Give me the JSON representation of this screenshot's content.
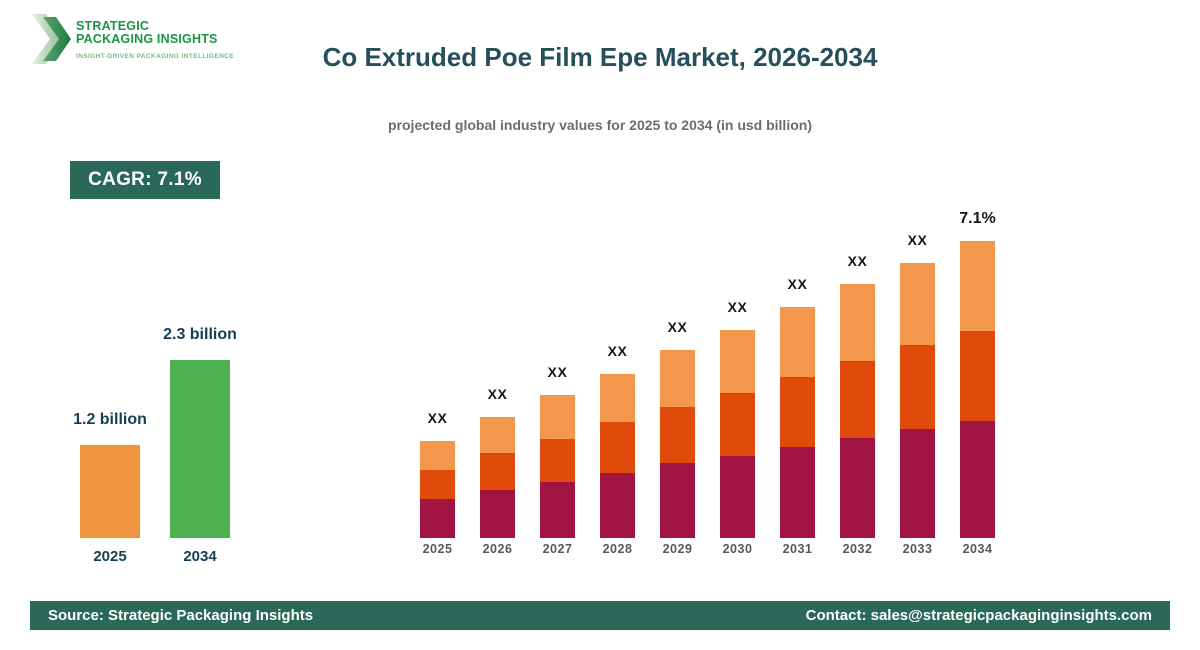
{
  "brand": {
    "line1": "STRATEGIC",
    "line2": "PACKAGING INSIGHTS",
    "tagline": "INSIGHT-DRIVEN PACKAGING INTELLIGENCE"
  },
  "header": {
    "title": "Co Extruded Poe Film Epe Market, 2026-2034",
    "subtitle": "projected global industry values for 2025 to 2034 (in usd billion)"
  },
  "cagr": {
    "label": "CAGR: 7.1%"
  },
  "footer": {
    "source": "Source: Strategic Packaging Insights",
    "contact": "Contact: sales@strategicpackaginginsights.com"
  },
  "colors": {
    "accent_green_dark": "#2a6957",
    "title_teal": "#264f5c",
    "label_navy": "#163e53",
    "subtitle_gray": "#6a6d70",
    "logo_green": "#1d9348",
    "logo_tagline_green": "#74b885",
    "year_label_gray": "#58585a",
    "bar_label_black": "#161616"
  },
  "chart_data": [
    {
      "type": "bar",
      "name": "market-size-summary",
      "categories": [
        "2025",
        "2034"
      ],
      "values": [
        1.2,
        2.3
      ],
      "value_labels": [
        "1.2 billion",
        "2.3 billion"
      ],
      "unit": "usd billion",
      "bar_colors": [
        "#f0953f",
        "#4caf50"
      ],
      "grid": false,
      "axes_hidden": true
    },
    {
      "type": "bar",
      "subtype": "stacked",
      "name": "annual-projection-2025-2034",
      "categories": [
        "2025",
        "2026",
        "2027",
        "2028",
        "2029",
        "2030",
        "2031",
        "2032",
        "2033",
        "2034"
      ],
      "bar_top_labels": [
        "XX",
        "XX",
        "XX",
        "XX",
        "XX",
        "XX",
        "XX",
        "XX",
        "XX",
        "7.1%"
      ],
      "series": [
        {
          "name": "segment-bottom",
          "color": "#a21441",
          "relative_heights": [
            39,
            48,
            56,
            65,
            75,
            82,
            91,
            100,
            109,
            117
          ]
        },
        {
          "name": "segment-middle",
          "color": "#e04b0c",
          "relative_heights": [
            29,
            37,
            43,
            51,
            56,
            63,
            70,
            77,
            84,
            90
          ]
        },
        {
          "name": "segment-top",
          "color": "#f2974b",
          "relative_heights": [
            29,
            36,
            44,
            48,
            57,
            63,
            70,
            77,
            82,
            90
          ]
        }
      ],
      "grid": false,
      "axes_hidden": true
    }
  ]
}
